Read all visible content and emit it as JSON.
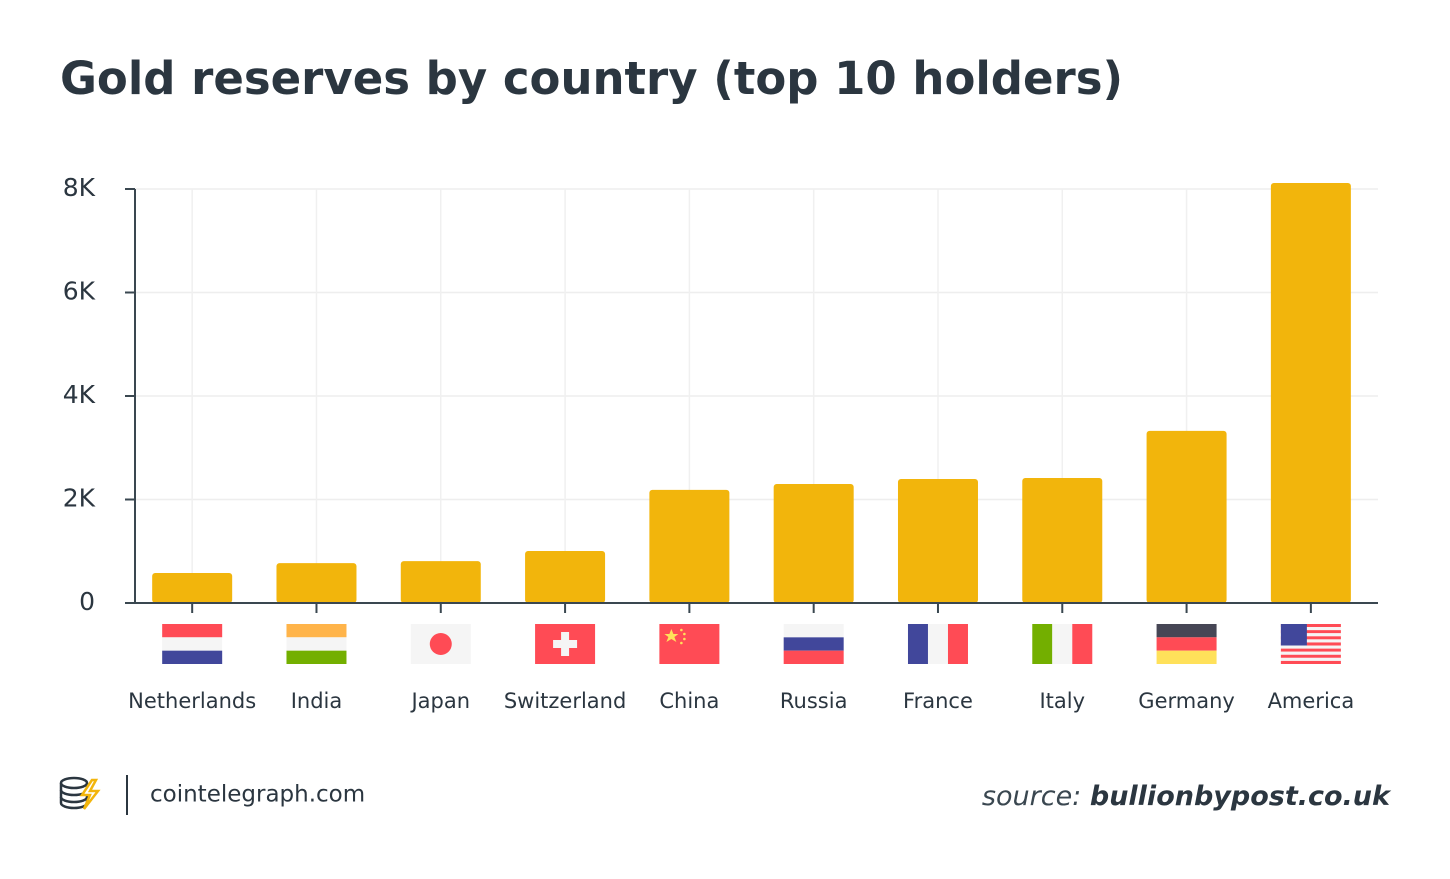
{
  "chart_data": {
    "type": "bar",
    "title": "Gold reserves by country (top 10 holders)",
    "categories": [
      "Netherlands",
      "India",
      "Japan",
      "Switzerland",
      "China",
      "Russia",
      "France",
      "Italy",
      "Germany",
      "America"
    ],
    "values": [
      580,
      770,
      810,
      1005,
      2185,
      2300,
      2395,
      2415,
      3325,
      8115
    ],
    "color": "#f2b50c",
    "ylim": [
      0,
      8000
    ],
    "yticks": [
      0,
      {
        "value": 2000,
        "label": "2K"
      },
      {
        "value": 4000,
        "label": "4K"
      },
      {
        "value": 6000,
        "label": "6K"
      },
      {
        "value": 8000,
        "label": "8K"
      }
    ],
    "grid": true
  },
  "footer": {
    "site": "cointelegraph.com",
    "source_label": "source:",
    "source": "bullionbypost.co.uk"
  }
}
